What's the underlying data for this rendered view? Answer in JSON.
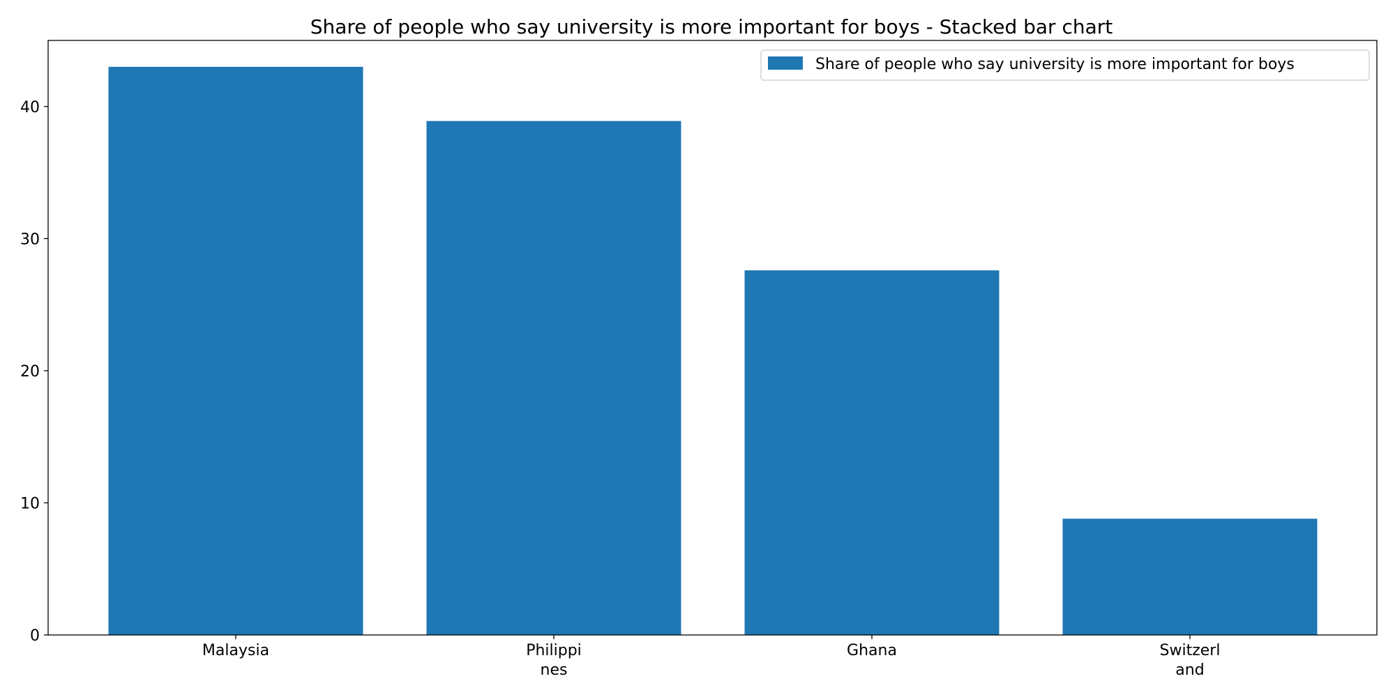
{
  "chart_data": {
    "type": "bar",
    "title": "Share of people who say university is more important for boys - Stacked bar chart",
    "xlabel": "",
    "ylabel": "",
    "categories": [
      "Malaysia",
      "Philippines",
      "Ghana",
      "Switzerland"
    ],
    "category_display": [
      [
        "Malaysia"
      ],
      [
        "Philippi",
        "nes"
      ],
      [
        "Ghana"
      ],
      [
        "Switzerl",
        "and"
      ]
    ],
    "series": [
      {
        "name": "Share of people who say university is more important for boys",
        "values": [
          43.0,
          38.9,
          27.6,
          8.8
        ],
        "color": "#1f77b4"
      }
    ],
    "ylim": [
      0,
      45
    ],
    "yticks": [
      "0",
      "10",
      "20",
      "30",
      "40"
    ],
    "grid": false,
    "legend_position": "top-right"
  }
}
